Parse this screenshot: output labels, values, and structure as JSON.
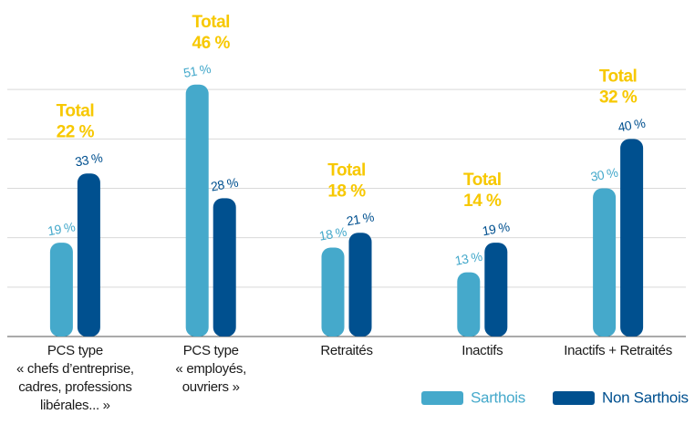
{
  "chart_data": {
    "type": "bar",
    "categories": [
      "PCS type\n« chefs d’entreprise,\ncadres, professions\nlibérales... »",
      "PCS type\n« employés,\nouvriers »",
      "Retraités",
      "Inactifs",
      "Inactifs + Retraités"
    ],
    "series": [
      {
        "name": "Sarthois",
        "color": "#45a9cb",
        "values": [
          19,
          51,
          18,
          13,
          30
        ],
        "value_labels": [
          "19 %",
          "51 %",
          "18 %",
          "13 %",
          "30 %"
        ]
      },
      {
        "name": "Non Sarthois",
        "color": "#00508f",
        "values": [
          33,
          28,
          21,
          19,
          40
        ],
        "value_labels": [
          "33 %",
          "28 %",
          "21 %",
          "19 %",
          "40 %"
        ]
      }
    ],
    "total_label": "Total",
    "totals": {
      "color": "#f7c800",
      "values": [
        22,
        46,
        18,
        14,
        32
      ],
      "value_labels": [
        "22 %",
        "46 %",
        "18 %",
        "14 %",
        "32 %"
      ]
    },
    "ylim": [
      0,
      60
    ],
    "yticks": [
      0,
      10,
      20,
      30,
      40,
      50
    ],
    "grid": true,
    "legend": "bottom-right"
  }
}
